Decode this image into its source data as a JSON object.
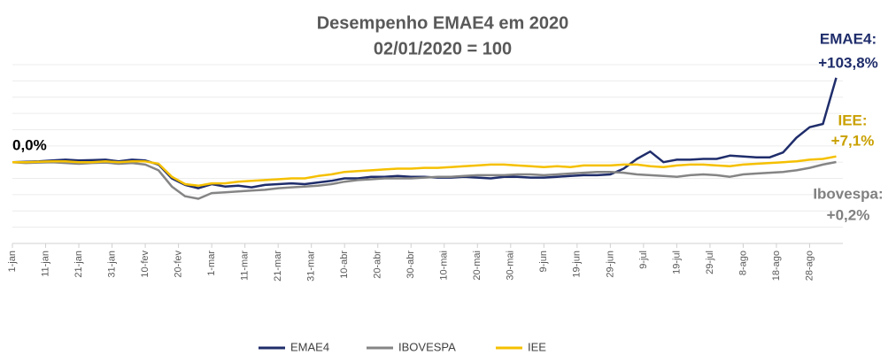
{
  "chart_data": {
    "type": "line",
    "title": "Desempenho EMAE4 em 2020",
    "subtitle": "02/01/2020 = 100",
    "x": [
      0,
      4,
      8,
      12,
      16,
      20,
      24,
      28,
      32,
      36,
      40,
      44,
      48,
      52,
      56,
      60,
      64,
      68,
      72,
      76,
      80,
      84,
      88,
      92,
      96,
      100,
      104,
      108,
      112,
      116,
      120,
      124,
      128,
      132,
      136,
      140,
      144,
      148,
      152,
      156,
      160,
      164,
      168,
      172,
      176,
      180,
      184,
      188,
      192,
      196,
      200,
      204,
      208,
      212,
      216,
      220,
      224,
      228,
      232,
      236,
      240,
      244,
      248
    ],
    "xlim": [
      0,
      250
    ],
    "xticks": [
      {
        "value": 0,
        "label": "1-jan"
      },
      {
        "value": 10,
        "label": "11-jan"
      },
      {
        "value": 20,
        "label": "21-jan"
      },
      {
        "value": 30,
        "label": "31-jan"
      },
      {
        "value": 40,
        "label": "10-fev"
      },
      {
        "value": 50,
        "label": "20-fev"
      },
      {
        "value": 60,
        "label": "1-mar"
      },
      {
        "value": 70,
        "label": "11-mar"
      },
      {
        "value": 80,
        "label": "21-mar"
      },
      {
        "value": 90,
        "label": "31-mar"
      },
      {
        "value": 100,
        "label": "10-abr"
      },
      {
        "value": 110,
        "label": "20-abr"
      },
      {
        "value": 120,
        "label": "30-abr"
      },
      {
        "value": 130,
        "label": "10-mai"
      },
      {
        "value": 140,
        "label": "20-mai"
      },
      {
        "value": 150,
        "label": "30-mai"
      },
      {
        "value": 160,
        "label": "9-jun"
      },
      {
        "value": 170,
        "label": "19-jun"
      },
      {
        "value": 180,
        "label": "29-jun"
      },
      {
        "value": 190,
        "label": "9-jul"
      },
      {
        "value": 200,
        "label": "19-jul"
      },
      {
        "value": 210,
        "label": "29-jul"
      },
      {
        "value": 220,
        "label": "8-ago"
      },
      {
        "value": 230,
        "label": "18-ago"
      },
      {
        "value": 240,
        "label": "28-ago"
      }
    ],
    "ylim": [
      0,
      220
    ],
    "yticks": [
      0,
      20,
      40,
      60,
      80,
      100,
      120,
      140,
      160,
      180,
      200,
      220
    ],
    "grid": true,
    "series": [
      {
        "name": "EMAE4",
        "color": "#1f2d6b",
        "values": [
          100,
          100.5,
          101,
          102,
          103,
          102,
          102.5,
          103,
          101,
          103,
          102,
          97,
          80,
          72,
          68,
          73,
          70,
          71,
          69,
          72,
          73,
          74,
          73,
          75,
          77,
          80,
          80,
          82,
          82,
          83,
          82,
          82,
          81,
          81,
          82,
          81,
          80,
          82,
          82,
          81,
          81,
          82,
          83,
          84,
          84,
          85,
          92,
          104,
          113,
          100,
          103,
          103,
          104,
          104,
          108,
          107,
          106,
          106,
          112,
          130,
          143,
          147,
          203.8
        ]
      },
      {
        "name": "IBOVESPA",
        "color": "#858585",
        "values": [
          100,
          99,
          99.5,
          100,
          99,
          98,
          99,
          99.5,
          98,
          99,
          97,
          90,
          70,
          58,
          55,
          62,
          63,
          64,
          65,
          66,
          68,
          69,
          70,
          71,
          73,
          76,
          78,
          79,
          80,
          80,
          80,
          81,
          82,
          82,
          83,
          84,
          84,
          84,
          85,
          85,
          84,
          85,
          86,
          87,
          88,
          88,
          87,
          85,
          84,
          83,
          82,
          84,
          85,
          84,
          82,
          85,
          86,
          87,
          88,
          90,
          93,
          97,
          100.2
        ]
      },
      {
        "name": "IEE",
        "color": "#f5c000",
        "values": [
          100,
          100,
          100.5,
          101,
          101,
          100,
          100,
          101,
          100,
          101,
          101,
          98,
          82,
          73,
          71,
          74,
          74,
          76,
          77,
          78,
          79,
          80,
          80,
          83,
          85,
          88,
          89,
          90,
          91,
          92,
          92,
          93,
          93,
          94,
          95,
          96,
          97,
          97,
          96,
          95,
          94,
          95,
          94,
          96,
          96,
          96,
          97,
          97,
          95,
          94,
          96,
          97,
          97,
          96,
          95,
          97,
          98,
          99,
          100,
          101,
          103,
          104,
          107.1
        ]
      }
    ],
    "annotations": [
      {
        "text": "0,0%",
        "color": "#000000"
      },
      {
        "text": "EMAE4:",
        "color": "#1f2d6b"
      },
      {
        "text": "+103,8%",
        "color": "#1f2d6b"
      },
      {
        "text": "IEE:",
        "color": "#c9a000"
      },
      {
        "text": "+7,1%",
        "color": "#c9a000"
      },
      {
        "text": "Ibovespa:",
        "color": "#808080"
      },
      {
        "text": "+0,2%",
        "color": "#808080"
      }
    ]
  }
}
